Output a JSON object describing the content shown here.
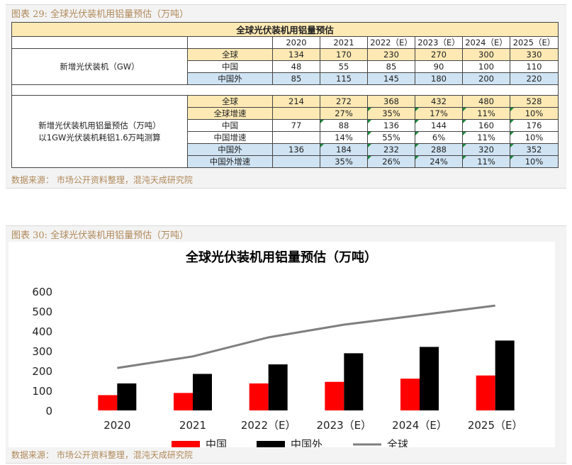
{
  "figure1": {
    "caption": "图表 29:  全球光伏装机用铝量预估（万吨）",
    "table_title": "全球光伏装机用铝量预估",
    "columns": [
      "2020",
      "2021",
      "2022（E）",
      "2023（E）",
      "2024（E）",
      "2025（E）"
    ],
    "group1_label": "新增光伏装机（GW）",
    "group1_rows": [
      {
        "name": "全球",
        "values": [
          "134",
          "170",
          "230",
          "270",
          "300",
          "330"
        ]
      },
      {
        "name": "中国",
        "values": [
          "48",
          "55",
          "85",
          "90",
          "100",
          "110"
        ]
      },
      {
        "name": "中国外",
        "values": [
          "85",
          "115",
          "145",
          "180",
          "200",
          "220"
        ]
      }
    ],
    "group2_label_line1": "新增光伏装机用铝量预估（万吨）",
    "group2_label_line2": "以1GW光伏装机耗铝1.6万吨测算",
    "group2_rows": [
      {
        "name": "全球",
        "values": [
          "214",
          "272",
          "368",
          "432",
          "480",
          "528"
        ]
      },
      {
        "name": "全球增速",
        "values": [
          "",
          "27%",
          "35%",
          "17%",
          "11%",
          "10%"
        ]
      },
      {
        "name": "中国",
        "values": [
          "77",
          "88",
          "136",
          "144",
          "160",
          "176"
        ]
      },
      {
        "name": "中国增速",
        "values": [
          "",
          "14%",
          "55%",
          "6%",
          "11%",
          "10%"
        ]
      },
      {
        "name": "中国外",
        "values": [
          "136",
          "184",
          "232",
          "288",
          "320",
          "352"
        ]
      },
      {
        "name": "中国外增速",
        "values": [
          "",
          "35%",
          "26%",
          "24%",
          "11%",
          "10%"
        ]
      }
    ],
    "source": "数据来源：  市场公开资料整理，混沌天成研究院"
  },
  "figure2": {
    "caption": "图表 30:  全球光伏装机用铝量预估（万吨）",
    "source": "数据来源：  市场公开资料整理，混沌天成研究院"
  },
  "chart_data": {
    "type": "bar",
    "title": "全球光伏装机用铝量预估（万吨）",
    "categories": [
      "2020",
      "2021",
      "2022（E）",
      "2023（E）",
      "2024（E）",
      "2025（E）"
    ],
    "ylim": [
      0,
      600
    ],
    "yticks": [
      "0",
      "100",
      "200",
      "300",
      "400",
      "500",
      "600"
    ],
    "grid": false,
    "legend_position": "bottom",
    "series": [
      {
        "name": "中国",
        "kind": "bar",
        "color": "#ff0000",
        "values": [
          77,
          88,
          136,
          144,
          160,
          176
        ]
      },
      {
        "name": "中国外",
        "kind": "bar",
        "color": "#000000",
        "values": [
          136,
          184,
          232,
          288,
          320,
          352
        ]
      },
      {
        "name": "全球",
        "kind": "line",
        "color": "#7f7f7f",
        "values": [
          214,
          272,
          368,
          432,
          480,
          528
        ]
      }
    ]
  }
}
